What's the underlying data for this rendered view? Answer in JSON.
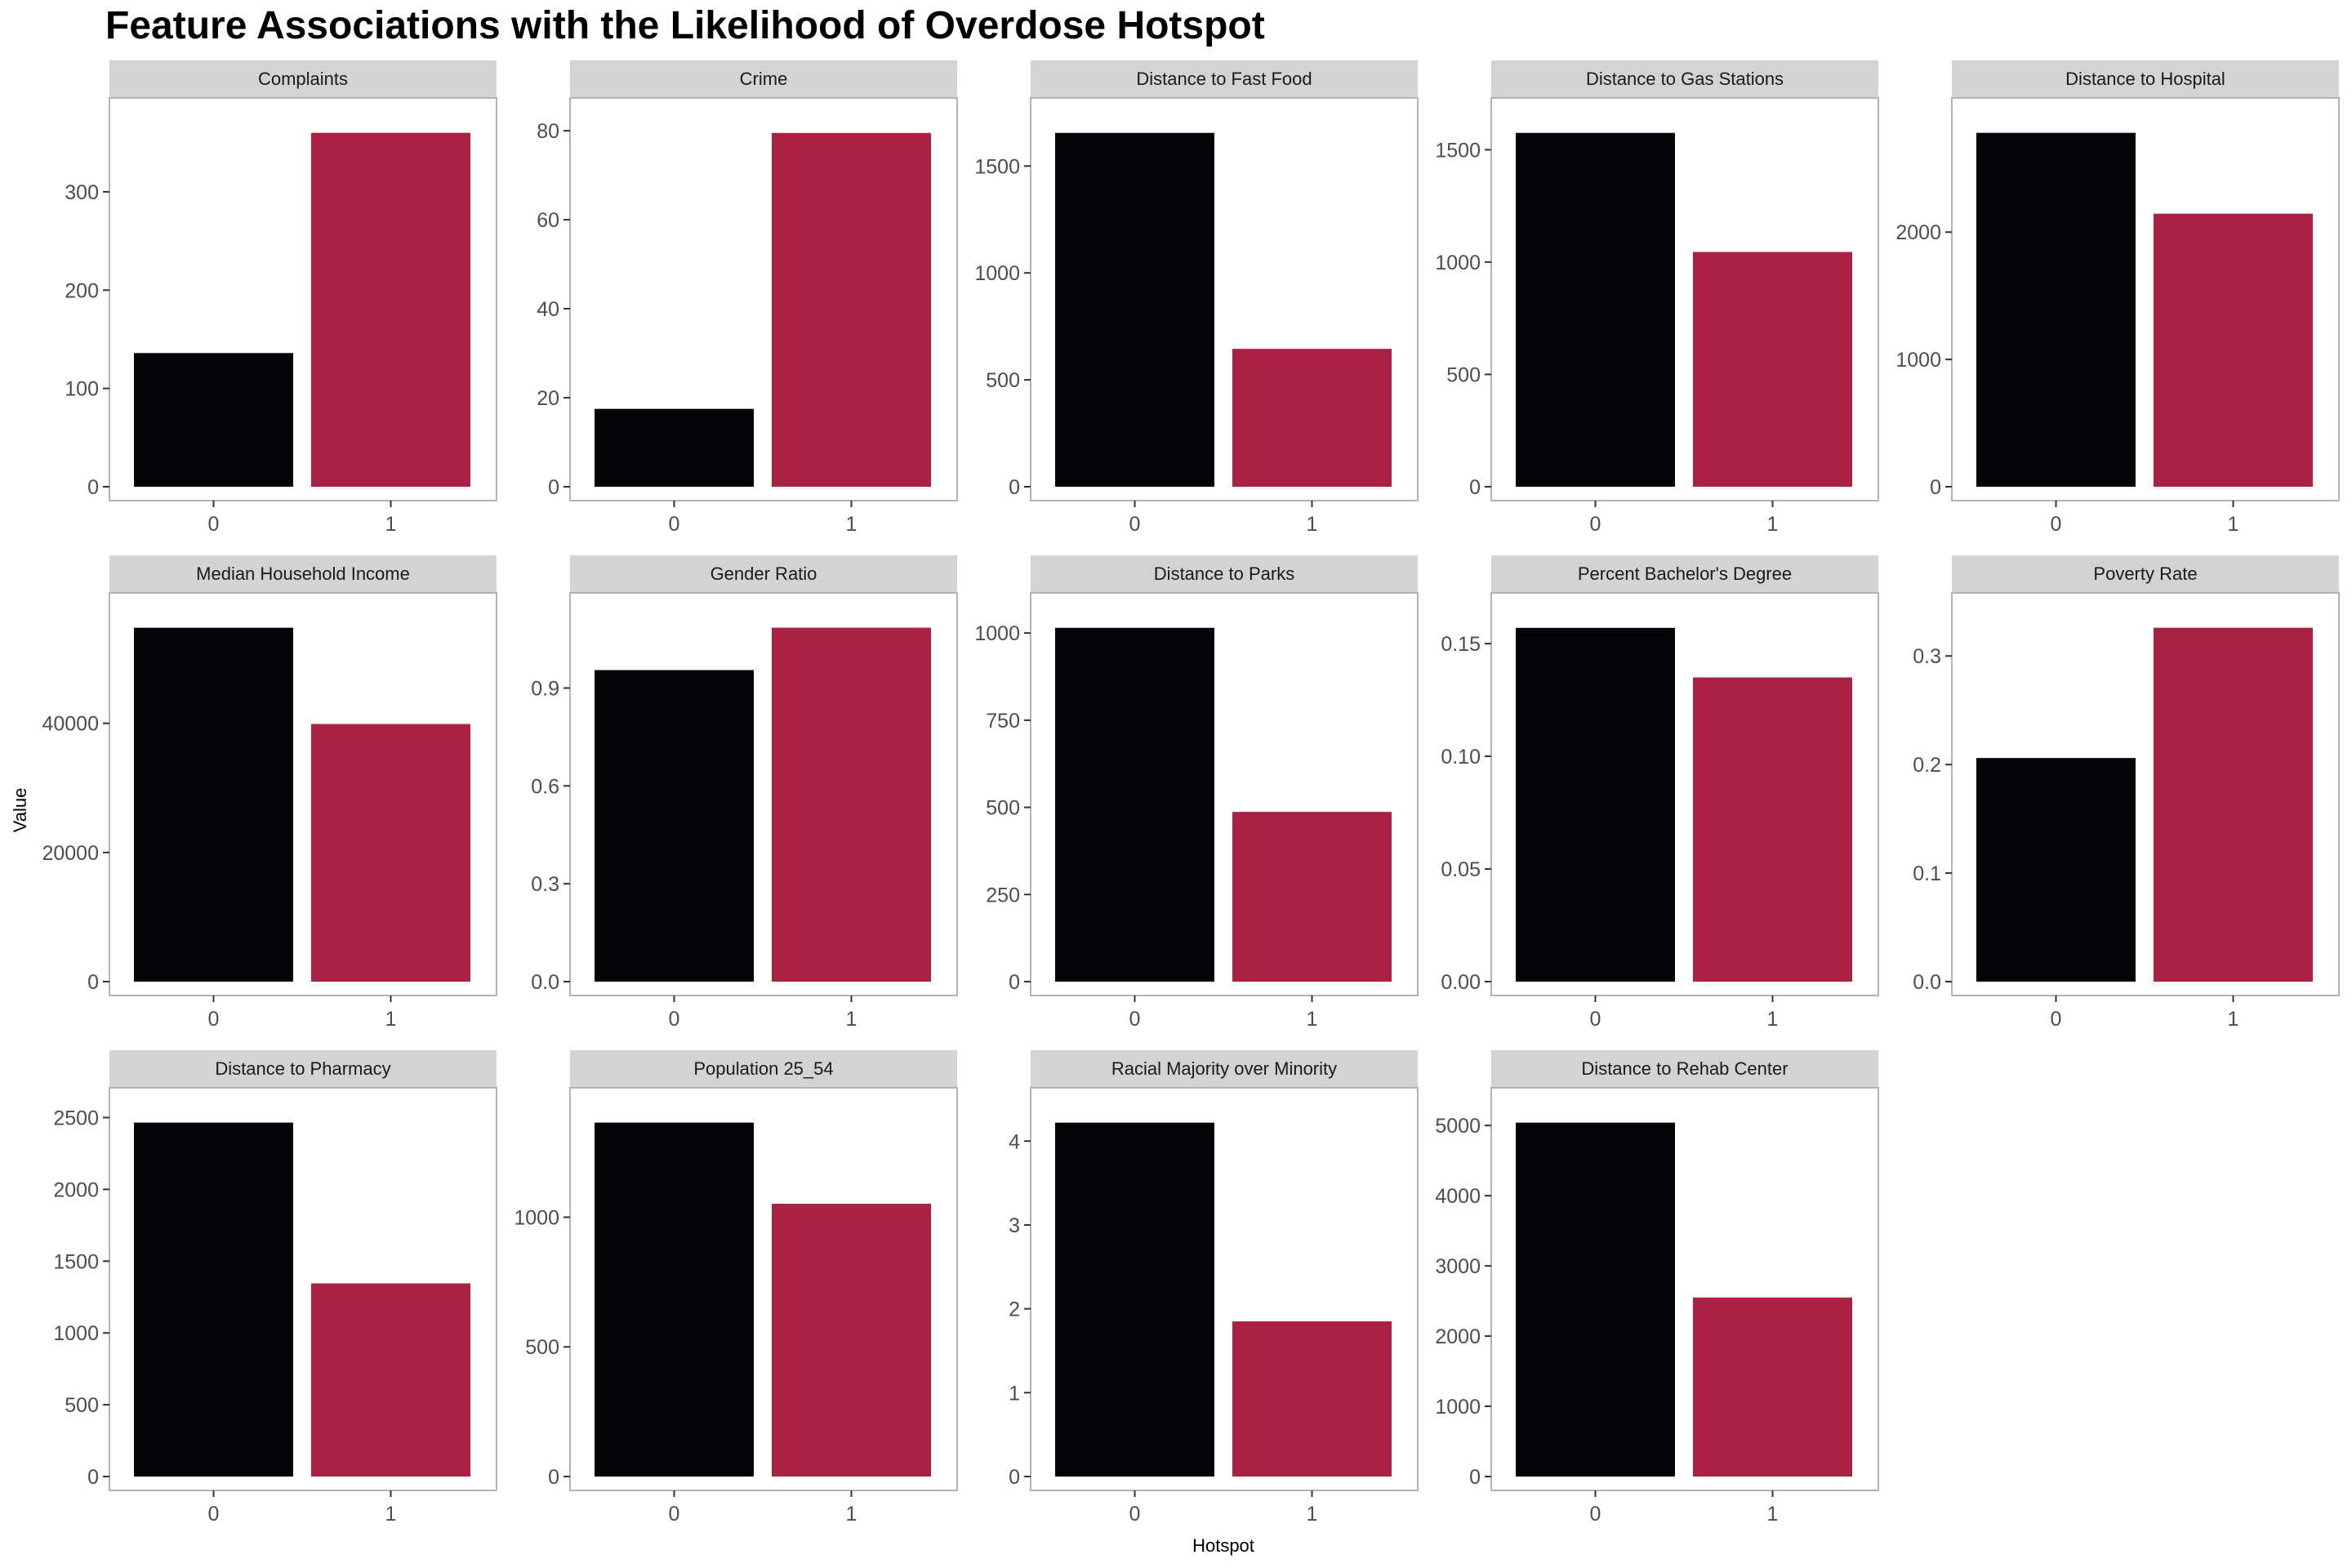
{
  "chart_data": {
    "type": "bar",
    "title": "Feature Associations with the Likelihood of Overdose Hotspot",
    "xlabel": "Hotspot",
    "ylabel": "Value",
    "categories": [
      "0",
      "1"
    ],
    "grid": false,
    "colors": {
      "0": "#040409",
      "1": "#AB2143",
      "strip_bg": "#D3D3D3",
      "panel_border": "#B3B3B3",
      "tick": "#4D4D4D"
    },
    "panels": [
      {
        "name": "Complaints",
        "values": [
          136,
          360
        ],
        "ylim": [
          0,
          378
        ],
        "yticks": [
          0,
          100,
          200,
          300
        ],
        "tick_labels": [
          "0",
          "100",
          "200",
          "300"
        ]
      },
      {
        "name": "Crime",
        "values": [
          17.5,
          79.5
        ],
        "ylim": [
          0,
          83.5
        ],
        "yticks": [
          0,
          20,
          40,
          60,
          80
        ],
        "tick_labels": [
          "0",
          "20",
          "40",
          "60",
          "80"
        ]
      },
      {
        "name": "Distance to Fast Food",
        "values": [
          1655,
          645
        ],
        "ylim": [
          0,
          1738
        ],
        "yticks": [
          0,
          500,
          1000,
          1500
        ],
        "tick_labels": [
          "0",
          "500",
          "1000",
          "1500"
        ]
      },
      {
        "name": "Distance to Gas Stations",
        "values": [
          1575,
          1045
        ],
        "ylim": [
          0,
          1654
        ],
        "yticks": [
          0,
          500,
          1000,
          1500
        ],
        "tick_labels": [
          "0",
          "500",
          "1000",
          "1500"
        ]
      },
      {
        "name": "Distance to Hospital",
        "values": [
          2780,
          2145
        ],
        "ylim": [
          0,
          2919
        ],
        "yticks": [
          0,
          1000,
          2000
        ],
        "tick_labels": [
          "0",
          "1000",
          "2000"
        ]
      },
      {
        "name": "Median Household Income",
        "values": [
          54800,
          39900
        ],
        "ylim": [
          0,
          57540
        ],
        "yticks": [
          0,
          20000,
          40000
        ],
        "tick_labels": [
          "0",
          "20000",
          "40000"
        ]
      },
      {
        "name": "Gender Ratio",
        "values": [
          0.955,
          1.085
        ],
        "ylim": [
          0,
          1.139
        ],
        "yticks": [
          0,
          0.3,
          0.6,
          0.9
        ],
        "tick_labels": [
          "0.0",
          "0.3",
          "0.6",
          "0.9"
        ]
      },
      {
        "name": "Distance to Parks",
        "values": [
          1015,
          487
        ],
        "ylim": [
          0,
          1066
        ],
        "yticks": [
          0,
          250,
          500,
          750,
          1000
        ],
        "tick_labels": [
          "0",
          "250",
          "500",
          "750",
          "1000"
        ]
      },
      {
        "name": "Percent Bachelor's Degree",
        "values": [
          0.157,
          0.135
        ],
        "ylim": [
          0,
          0.1649
        ],
        "yticks": [
          0,
          0.05,
          0.1,
          0.15
        ],
        "tick_labels": [
          "0.00",
          "0.05",
          "0.10",
          "0.15"
        ]
      },
      {
        "name": "Poverty Rate",
        "values": [
          0.206,
          0.326
        ],
        "ylim": [
          0,
          0.3423
        ],
        "yticks": [
          0,
          0.1,
          0.2,
          0.3
        ],
        "tick_labels": [
          "0.0",
          "0.1",
          "0.2",
          "0.3"
        ]
      },
      {
        "name": "Distance to Pharmacy",
        "values": [
          2465,
          1345
        ],
        "ylim": [
          0,
          2588
        ],
        "yticks": [
          0,
          500,
          1000,
          1500,
          2000,
          2500
        ],
        "tick_labels": [
          "0",
          "500",
          "1000",
          "1500",
          "2000",
          "2500"
        ]
      },
      {
        "name": "Population 25_54",
        "values": [
          1365,
          1052
        ],
        "ylim": [
          0,
          1433
        ],
        "yticks": [
          0,
          500,
          1000
        ],
        "tick_labels": [
          "0",
          "500",
          "1000"
        ]
      },
      {
        "name": "Racial Majority over Minority",
        "values": [
          4.22,
          1.85
        ],
        "ylim": [
          0,
          4.431
        ],
        "yticks": [
          0,
          1,
          2,
          3,
          4
        ],
        "tick_labels": [
          "0",
          "1",
          "2",
          "3",
          "4"
        ]
      },
      {
        "name": "Distance to Rehab Center",
        "values": [
          5040,
          2550
        ],
        "ylim": [
          0,
          5292
        ],
        "yticks": [
          0,
          1000,
          2000,
          3000,
          4000,
          5000
        ],
        "tick_labels": [
          "0",
          "1000",
          "2000",
          "3000",
          "4000",
          "5000"
        ]
      }
    ]
  }
}
